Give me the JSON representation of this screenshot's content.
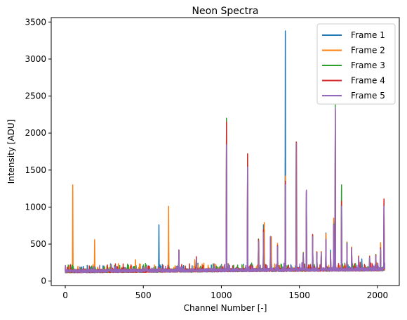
{
  "chart_data": {
    "type": "line",
    "title": "Neon Spectra",
    "xlabel": "Channel Number [-]",
    "ylabel": "Intensity [ADU]",
    "xlim": [
      -90,
      2140
    ],
    "ylim": [
      -60,
      3560
    ],
    "xticks": [
      0,
      500,
      1000,
      1500,
      2000
    ],
    "yticks": [
      0,
      500,
      1000,
      1500,
      2000,
      2500,
      3000,
      3500
    ],
    "grid": false,
    "legend_position": "top-right",
    "baseline": 130,
    "x_max": 2047,
    "series": [
      {
        "name": "Frame 1",
        "color": "#1f77b4",
        "peaks": [
          [
            42,
            170
          ],
          [
            600,
            760
          ],
          [
            660,
            230
          ],
          [
            728,
            420
          ],
          [
            840,
            300
          ],
          [
            1033,
            2150
          ],
          [
            1168,
            1340
          ],
          [
            1238,
            560
          ],
          [
            1270,
            760
          ],
          [
            1315,
            600
          ],
          [
            1360,
            480
          ],
          [
            1410,
            3380
          ],
          [
            1480,
            1850
          ],
          [
            1525,
            360
          ],
          [
            1545,
            1200
          ],
          [
            1585,
            600
          ],
          [
            1612,
            380
          ],
          [
            1640,
            380
          ],
          [
            1670,
            650
          ],
          [
            1700,
            420
          ],
          [
            1720,
            800
          ],
          [
            1730,
            2300
          ],
          [
            1770,
            1250
          ],
          [
            1805,
            520
          ],
          [
            1835,
            450
          ],
          [
            1880,
            330
          ],
          [
            1900,
            300
          ],
          [
            1950,
            330
          ],
          [
            1990,
            350
          ],
          [
            2020,
            500
          ],
          [
            2042,
            1040
          ]
        ]
      },
      {
        "name": "Frame 2",
        "color": "#ff7f0e",
        "peaks": [
          [
            48,
            1300
          ],
          [
            188,
            560
          ],
          [
            450,
            290
          ],
          [
            662,
            1010
          ],
          [
            728,
            420
          ],
          [
            830,
            290
          ],
          [
            1033,
            1880
          ],
          [
            1168,
            1580
          ],
          [
            1240,
            540
          ],
          [
            1275,
            790
          ],
          [
            1320,
            600
          ],
          [
            1360,
            510
          ],
          [
            1410,
            1420
          ],
          [
            1482,
            1870
          ],
          [
            1525,
            390
          ],
          [
            1545,
            1220
          ],
          [
            1585,
            620
          ],
          [
            1612,
            400
          ],
          [
            1640,
            400
          ],
          [
            1670,
            640
          ],
          [
            1700,
            380
          ],
          [
            1720,
            850
          ],
          [
            1730,
            2310
          ],
          [
            1770,
            1060
          ],
          [
            1805,
            530
          ],
          [
            1835,
            460
          ],
          [
            1880,
            340
          ],
          [
            1950,
            340
          ],
          [
            1990,
            360
          ],
          [
            2020,
            520
          ],
          [
            2042,
            1090
          ]
        ]
      },
      {
        "name": "Frame 3",
        "color": "#2ca02c",
        "peaks": [
          [
            100,
            180
          ],
          [
            440,
            200
          ],
          [
            728,
            410
          ],
          [
            840,
            310
          ],
          [
            1033,
            2200
          ],
          [
            1168,
            1700
          ],
          [
            1238,
            570
          ],
          [
            1270,
            680
          ],
          [
            1315,
            590
          ],
          [
            1360,
            470
          ],
          [
            1410,
            1280
          ],
          [
            1480,
            1860
          ],
          [
            1525,
            380
          ],
          [
            1545,
            1200
          ],
          [
            1585,
            610
          ],
          [
            1612,
            390
          ],
          [
            1640,
            380
          ],
          [
            1670,
            560
          ],
          [
            1700,
            390
          ],
          [
            1720,
            770
          ],
          [
            1730,
            2380
          ],
          [
            1770,
            1300
          ],
          [
            1805,
            520
          ],
          [
            1835,
            450
          ],
          [
            1880,
            330
          ],
          [
            1950,
            330
          ],
          [
            1990,
            360
          ],
          [
            2020,
            450
          ],
          [
            2042,
            1060
          ]
        ]
      },
      {
        "name": "Frame 4",
        "color": "#d62728",
        "peaks": [
          [
            728,
            420
          ],
          [
            840,
            330
          ],
          [
            1033,
            2150
          ],
          [
            1168,
            1720
          ],
          [
            1238,
            560
          ],
          [
            1270,
            690
          ],
          [
            1315,
            600
          ],
          [
            1360,
            480
          ],
          [
            1410,
            1350
          ],
          [
            1480,
            1880
          ],
          [
            1525,
            370
          ],
          [
            1545,
            1210
          ],
          [
            1585,
            630
          ],
          [
            1612,
            390
          ],
          [
            1640,
            390
          ],
          [
            1670,
            560
          ],
          [
            1700,
            380
          ],
          [
            1720,
            760
          ],
          [
            1730,
            2320
          ],
          [
            1770,
            1080
          ],
          [
            1805,
            510
          ],
          [
            1835,
            450
          ],
          [
            1880,
            330
          ],
          [
            1950,
            330
          ],
          [
            1990,
            350
          ],
          [
            2020,
            450
          ],
          [
            2042,
            1110
          ]
        ]
      },
      {
        "name": "Frame 5",
        "color": "#9467bd",
        "peaks": [
          [
            728,
            420
          ],
          [
            840,
            300
          ],
          [
            1033,
            1840
          ],
          [
            1168,
            1540
          ],
          [
            1238,
            540
          ],
          [
            1270,
            660
          ],
          [
            1315,
            600
          ],
          [
            1360,
            470
          ],
          [
            1410,
            1300
          ],
          [
            1480,
            1860
          ],
          [
            1525,
            370
          ],
          [
            1545,
            1230
          ],
          [
            1585,
            600
          ],
          [
            1612,
            380
          ],
          [
            1640,
            380
          ],
          [
            1670,
            560
          ],
          [
            1700,
            380
          ],
          [
            1720,
            760
          ],
          [
            1730,
            2340
          ],
          [
            1770,
            1010
          ],
          [
            1805,
            510
          ],
          [
            1835,
            440
          ],
          [
            1880,
            320
          ],
          [
            1950,
            320
          ],
          [
            1990,
            340
          ],
          [
            2020,
            430
          ],
          [
            2042,
            1010
          ]
        ]
      }
    ]
  }
}
